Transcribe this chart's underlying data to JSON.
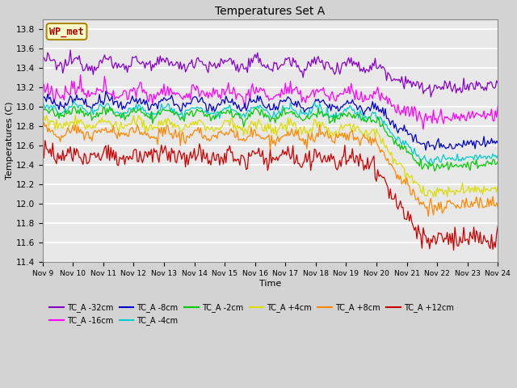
{
  "title": "Temperatures Set A",
  "xlabel": "Time",
  "ylabel": "Temperatures (C)",
  "ylim": [
    11.4,
    13.9
  ],
  "xlim": [
    0,
    360
  ],
  "background_color": "#d3d3d3",
  "plot_bg_color": "#e8e8e8",
  "grid_color": "white",
  "series": [
    {
      "label": "TC_A -32cm",
      "color": "#8800cc",
      "base": 13.45,
      "end": 13.18,
      "noise": 0.035,
      "drop_depth": 0.1
    },
    {
      "label": "TC_A -16cm",
      "color": "#ff00ff",
      "base": 13.15,
      "end": 12.88,
      "noise": 0.04,
      "drop_depth": 0.18
    },
    {
      "label": "TC_A -8cm",
      "color": "#0000cc",
      "base": 13.05,
      "end": 12.6,
      "noise": 0.028,
      "drop_depth": 0.25
    },
    {
      "label": "TC_A -4cm",
      "color": "#00cccc",
      "base": 12.98,
      "end": 12.45,
      "noise": 0.022,
      "drop_depth": 0.28
    },
    {
      "label": "TC_A -2cm",
      "color": "#00cc00",
      "base": 12.94,
      "end": 12.38,
      "noise": 0.022,
      "drop_depth": 0.3
    },
    {
      "label": "TC_A +4cm",
      "color": "#dddd00",
      "base": 12.83,
      "end": 12.12,
      "noise": 0.03,
      "drop_depth": 0.38
    },
    {
      "label": "TC_A +8cm",
      "color": "#ff8800",
      "base": 12.74,
      "end": 11.97,
      "noise": 0.035,
      "drop_depth": 0.42
    },
    {
      "label": "TC_A +12cm",
      "color": "#cc0000",
      "base": 12.52,
      "end": 11.62,
      "noise": 0.055,
      "drop_depth": 0.55
    }
  ],
  "xtick_labels": [
    "Nov 9",
    "Nov 10",
    "Nov 11",
    "Nov 12",
    "Nov 13",
    "Nov 14",
    "Nov 15",
    "Nov 16",
    "Nov 17",
    "Nov 18",
    "Nov 19",
    "Nov 20",
    "Nov 21",
    "Nov 22",
    "Nov 23",
    "Nov 24"
  ],
  "xtick_positions": [
    0,
    24,
    48,
    72,
    96,
    120,
    144,
    168,
    192,
    216,
    240,
    264,
    288,
    312,
    336,
    360
  ],
  "yticks": [
    11.4,
    11.6,
    11.8,
    12.0,
    12.2,
    12.4,
    12.6,
    12.8,
    13.0,
    13.2,
    13.4,
    13.6,
    13.8
  ],
  "annotation_text": "WP_met",
  "annotation_color": "#aa0000",
  "annotation_bg": "#ffffcc",
  "annotation_border": "#aa8800",
  "figsize": [
    6.4,
    4.8
  ],
  "dpi": 100
}
